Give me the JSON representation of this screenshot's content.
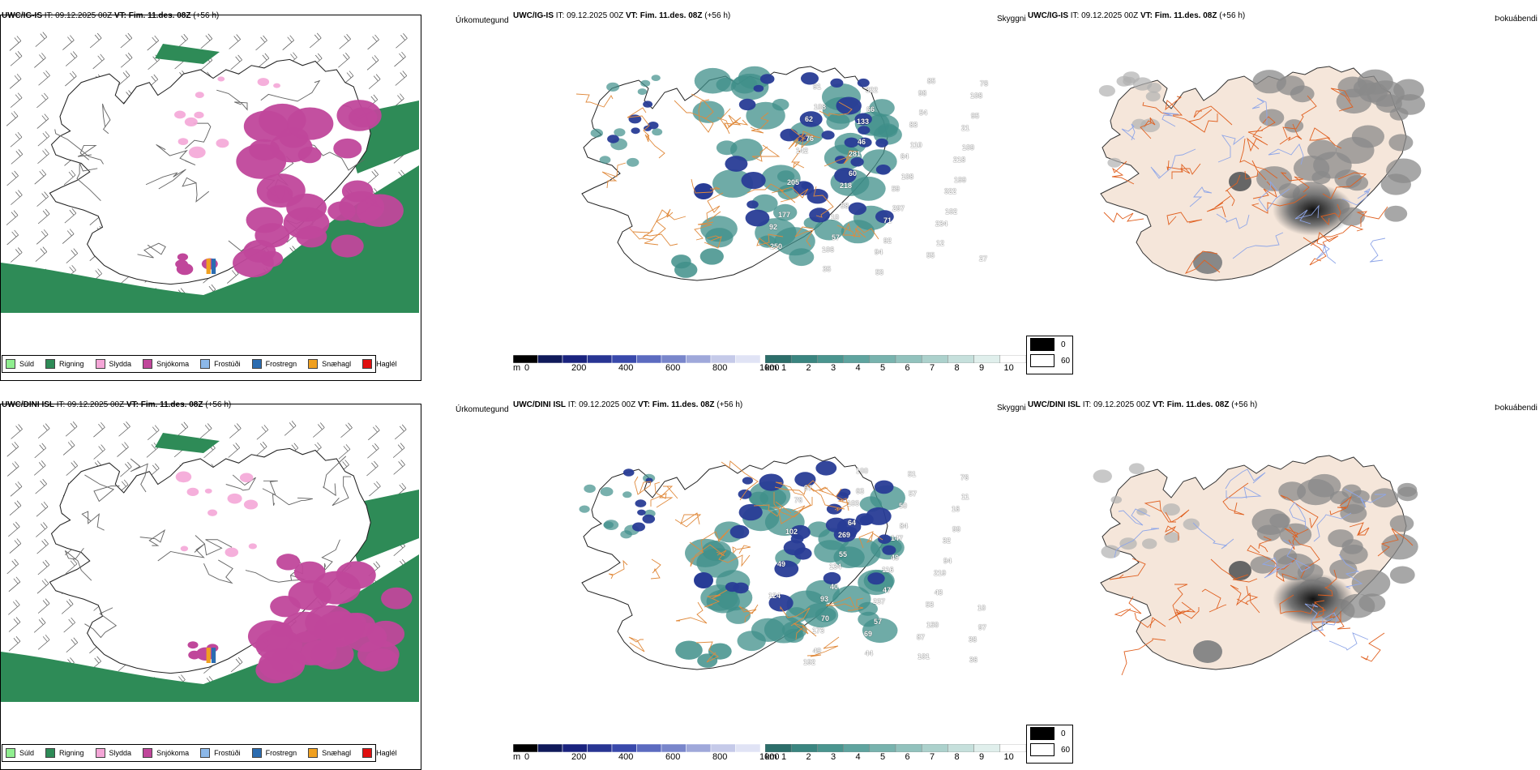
{
  "rows": [
    {
      "model": "UWC/IG-IS",
      "it_label": "IT:",
      "it_value": "09.12.2025 00Z",
      "vt_label": "VT:",
      "vt_value": "Fim. 11.des. 08Z",
      "lead": "(+56 h)",
      "visibility_values": [
        "76",
        "108",
        "35",
        "57",
        "58",
        "60",
        "46",
        "66",
        "53",
        "92",
        "297",
        "108",
        "110",
        "54",
        "85",
        "12",
        "102",
        "199",
        "109",
        "95",
        "78",
        "250",
        "177",
        "205",
        "142",
        "62",
        "91",
        "106",
        "10",
        "218",
        "281",
        "133",
        "322",
        "94",
        "71",
        "59",
        "64",
        "83",
        "98",
        "55",
        "234",
        "322",
        "218",
        "21",
        "108",
        "27",
        "92"
      ]
    },
    {
      "model": "UWC/DINI ISL",
      "it_label": "IT:",
      "it_value": "09.12.2025 00Z",
      "vt_label": "VT:",
      "vt_value": "Fim. 11.des. 08Z",
      "lead": "(+56 h)",
      "visibility_values": [
        "97",
        "49",
        "70",
        "40",
        "55",
        "64",
        "63",
        "44",
        "57",
        "47",
        "49",
        "84",
        "57",
        "101",
        "150",
        "43",
        "94",
        "99",
        "11",
        "36",
        "97",
        "124",
        "49",
        "102",
        "76",
        "192",
        "173",
        "93",
        "134",
        "269",
        "103",
        "100",
        "69",
        "237",
        "116",
        "147",
        "50",
        "51",
        "87",
        "53",
        "219",
        "32",
        "16",
        "76",
        "38",
        "10"
      ]
    }
  ],
  "panel_titles": {
    "precip": "Úrkomutegund",
    "visibility": "Skyggni",
    "fog": "Þokuábendi"
  },
  "precip_legend": [
    {
      "label": "Súld",
      "color": "#90ee90"
    },
    {
      "label": "Rigning",
      "color": "#2e8b57"
    },
    {
      "label": "Slydda",
      "color": "#f4a6d7"
    },
    {
      "label": "Snjókoma",
      "color": "#c0479b"
    },
    {
      "label": "Frostúði",
      "color": "#8cb8e8"
    },
    {
      "label": "Frostregn",
      "color": "#2b6cb0"
    },
    {
      "label": "Snæhagl",
      "color": "#f0a020"
    },
    {
      "label": "Haglél",
      "color": "#e01010"
    }
  ],
  "cloud_base_scale": {
    "unit": "m",
    "ticks": [
      "0",
      "200",
      "400",
      "600",
      "800",
      "1000"
    ]
  },
  "visibility_scale": {
    "unit": "km",
    "ticks": [
      "1",
      "2",
      "3",
      "4",
      "5",
      "6",
      "7",
      "8",
      "9",
      "10"
    ]
  },
  "fog_legend": [
    {
      "label": "0",
      "color": "#000000"
    },
    {
      "label": "60",
      "color": "#ffffff"
    }
  ],
  "colors": {
    "rain": "#2e8b57",
    "snow": "#c0479b",
    "sleet": "#f4a6d7",
    "land": "#f5e6da",
    "roads": "#e06020",
    "cloud": "#283c96",
    "visteal": "#3f8f8a"
  }
}
